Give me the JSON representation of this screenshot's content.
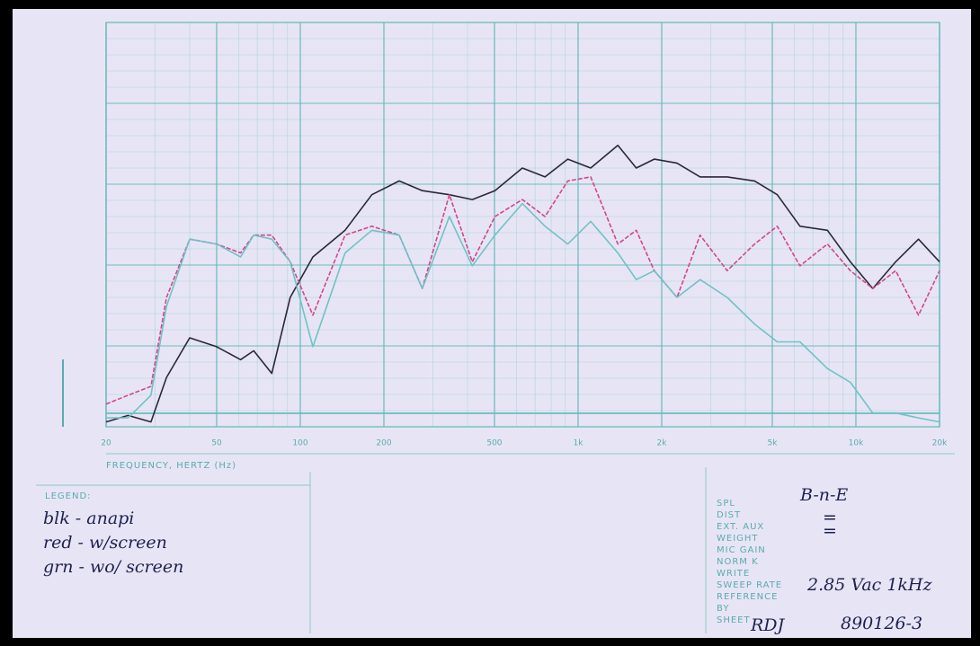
{
  "chart_data": {
    "type": "line",
    "xlabel": "FREQUENCY, HERTZ (Hz)",
    "xscale": "log",
    "xlim": [
      20,
      20000
    ],
    "ylim": [
      0,
      50
    ],
    "xticks": [
      20,
      50,
      100,
      200,
      500,
      {
        "value": 1000,
        "label": "1k"
      },
      {
        "value": 2000,
        "label": "2k"
      },
      {
        "value": 5000,
        "label": "5k"
      },
      {
        "value": 10000,
        "label": "10k"
      },
      {
        "value": 20000,
        "label": "20k"
      }
    ],
    "grid": true,
    "x": [
      20,
      24,
      29,
      33,
      40,
      50,
      61,
      68,
      79,
      92,
      111,
      145,
      181,
      227,
      275,
      344,
      416,
      502,
      630,
      760,
      918,
      1110,
      1390,
      1620,
      1880,
      2270,
      2750,
      3440,
      4320,
      5210,
      6290,
      7900,
      9550,
      11500,
      13900,
      16800,
      20000
    ],
    "series": [
      {
        "name": "blk - anapi",
        "color": "#2b2738",
        "values": [
          0.6,
          1.4,
          0.6,
          6.1,
          11,
          9.9,
          8.3,
          9.4,
          6.6,
          16,
          21,
          24.3,
          28.7,
          30.4,
          29.2,
          28.7,
          28.1,
          29.2,
          32,
          30.9,
          33.1,
          32,
          34.8,
          32,
          33.1,
          32.6,
          30.9,
          30.9,
          30.4,
          28.7,
          24.8,
          24.3,
          20.4,
          17.1,
          20.4,
          23.2,
          20.4
        ]
      },
      {
        "name": "red - w/screen",
        "color": "#d3468c",
        "values": [
          2.8,
          3.9,
          5,
          16,
          23.2,
          22.6,
          21.5,
          23.7,
          23.7,
          20.4,
          13.8,
          23.7,
          24.8,
          23.7,
          17.1,
          28.7,
          20.4,
          26,
          28.1,
          26,
          30.4,
          30.9,
          22.6,
          24.3,
          19.3,
          16,
          23.7,
          19.3,
          22.6,
          24.8,
          19.9,
          22.6,
          19.3,
          17.1,
          19.3,
          13.8,
          19.3
        ]
      },
      {
        "name": "grn - wo/ screen",
        "color": "#6fc2c6",
        "values": [
          1.1,
          1.1,
          3.9,
          14.9,
          23.2,
          22.6,
          21,
          23.7,
          23.2,
          20.4,
          9.9,
          21.5,
          24.3,
          23.7,
          17.1,
          26,
          19.9,
          23.7,
          27.6,
          24.8,
          22.6,
          25.4,
          21.5,
          18.2,
          19.3,
          16,
          18.2,
          16,
          12.7,
          10.5,
          10.5,
          7.2,
          5.5,
          1.7,
          1.7,
          1.1,
          0.6
        ]
      }
    ]
  },
  "legend_title": "LEGEND:",
  "record": [
    {
      "label": "SPL",
      "value": "B-n-E"
    },
    {
      "label": "DIST",
      "value": "="
    },
    {
      "label": "EXT. AUX",
      "value": "="
    },
    {
      "label": "WEIGHT"
    },
    {
      "label": "MIC GAIN"
    },
    {
      "label": "NORM K"
    },
    {
      "label": "WRITE",
      "value": "2.85 Vac 1kHz"
    },
    {
      "label": "SWEEP RATE"
    },
    {
      "label": "REFERENCE"
    },
    {
      "label": "BY",
      "value": "RDJ"
    },
    {
      "label": "SHEET",
      "value": "890126-3"
    }
  ]
}
